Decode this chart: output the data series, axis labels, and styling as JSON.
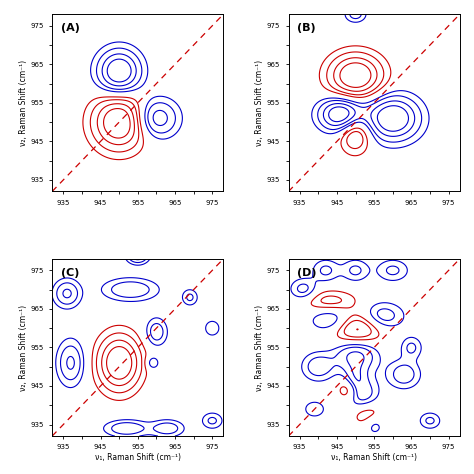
{
  "xlim": [
    932,
    978
  ],
  "ylim": [
    932,
    978
  ],
  "xticks": [
    935,
    940,
    945,
    950,
    955,
    960,
    965,
    970,
    975
  ],
  "yticks": [
    935,
    940,
    945,
    950,
    955,
    960,
    965,
    970,
    975
  ],
  "xlabel": "ν₁, Raman Shift (cm⁻¹)",
  "ylabel_A": "ν₂, Raman Shift (cm⁻¹)",
  "ylabel_B": "ν₂, Raman Shift (cm⁻¹)",
  "ylabel_C": "ν₂, Raman Shift (cm⁻¹)",
  "ylabel_D": "ν₂, Raman Shift (cm⁻¹)",
  "panels": [
    "(A)",
    "(B)",
    "(C)",
    "(D)"
  ],
  "red_color": "#cc0000",
  "blue_color": "#0000cc",
  "diag_color": "#cc0000",
  "panel_A": {
    "red_blobs": [
      [
        950,
        950,
        5,
        5,
        0
      ]
    ],
    "blue_blobs": [
      [
        950,
        963,
        4,
        4,
        0,
        1.0
      ],
      [
        960,
        951,
        4,
        3.5,
        0,
        0.7
      ]
    ]
  },
  "panel_B": {
    "red_blobs": [
      [
        950,
        962,
        5,
        4,
        0,
        1.0
      ],
      [
        950,
        947,
        3,
        3.5,
        0,
        0.6
      ]
    ],
    "blue_blobs": [
      [
        946,
        952,
        4,
        3,
        0,
        1.0
      ],
      [
        960,
        951,
        5,
        4,
        0,
        1.0
      ],
      [
        950,
        978,
        2,
        1.5,
        0,
        0.4
      ]
    ]
  },
  "panel_C": {
    "red_blobs": [
      [
        950,
        951,
        4,
        5,
        0,
        1.0
      ]
    ],
    "blue_blobs": [
      [
        936,
        969,
        2.5,
        2.5,
        0,
        0.55
      ],
      [
        937,
        951,
        2.5,
        4,
        0,
        0.55
      ],
      [
        953,
        970,
        5,
        2,
        0,
        0.5
      ],
      [
        960,
        959,
        2,
        2.5,
        0,
        0.45
      ],
      [
        969,
        968,
        1.5,
        1.5,
        0,
        0.35
      ],
      [
        959,
        951,
        1.2,
        1.2,
        0,
        0.35
      ],
      [
        952,
        934,
        4,
        1.5,
        0,
        0.5
      ],
      [
        963,
        934,
        3,
        1.5,
        0,
        0.45
      ],
      [
        975,
        936,
        2,
        1.5,
        0,
        0.35
      ],
      [
        975,
        960,
        1.5,
        1.5,
        0,
        0.3
      ],
      [
        955,
        979,
        2,
        1.5,
        0,
        0.35
      ],
      [
        955,
        979,
        2,
        1.5,
        0,
        0.35
      ]
    ]
  },
  "panel_D": {
    "red_blobs": [
      [
        950,
        960,
        5,
        3,
        0,
        0.7
      ],
      [
        953,
        938,
        3,
        2.5,
        0,
        0.5
      ],
      [
        943,
        967,
        5,
        2,
        0,
        0.4
      ],
      [
        948,
        944,
        2,
        2,
        0,
        0.4
      ]
    ],
    "blue_blobs": [
      [
        950,
        953,
        4,
        3,
        0,
        0.6
      ],
      [
        944,
        962,
        4,
        2.5,
        0,
        0.5
      ],
      [
        957,
        963,
        4,
        2.5,
        0,
        0.5
      ],
      [
        952,
        942,
        3,
        3.5,
        0,
        0.5
      ],
      [
        940,
        950,
        3,
        2.5,
        0,
        0.45
      ],
      [
        963,
        948,
        3,
        2.5,
        0,
        0.45
      ],
      [
        936,
        970,
        2.5,
        2,
        0,
        0.4
      ],
      [
        970,
        936,
        2,
        1.5,
        0,
        0.35
      ],
      [
        960,
        975,
        3,
        2,
        0,
        0.35
      ],
      [
        939,
        939,
        2,
        1.5,
        0,
        0.3
      ],
      [
        950,
        975,
        2.5,
        2,
        0,
        0.35
      ],
      [
        965,
        955,
        2,
        2,
        0,
        0.35
      ],
      [
        942,
        975,
        2.5,
        2,
        0,
        0.35
      ],
      [
        950,
        947,
        2,
        2.5,
        0,
        0.35
      ],
      [
        955,
        935,
        2,
        2,
        0,
        0.3
      ]
    ]
  }
}
